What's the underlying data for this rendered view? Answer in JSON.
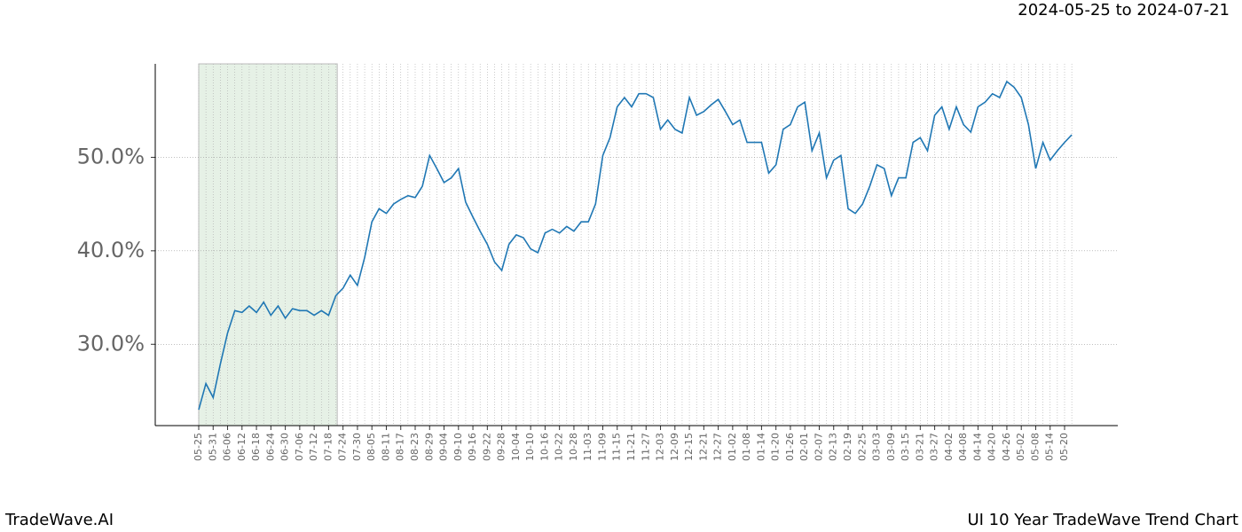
{
  "chart_data": {
    "type": "line",
    "title": "2024-05-25 to 2024-07-21",
    "footer_left": "TradeWave.AI",
    "footer_right": "UI 10 Year TradeWave Trend Chart",
    "categories": [
      "05-25",
      null,
      "05-31",
      null,
      "06-06",
      null,
      "06-12",
      null,
      "06-18",
      null,
      "06-24",
      null,
      "06-30",
      null,
      "07-06",
      null,
      "07-12",
      null,
      "07-18",
      null,
      "07-24",
      null,
      "07-30",
      null,
      "08-05",
      null,
      "08-11",
      null,
      "08-17",
      null,
      "08-23",
      null,
      "08-29",
      null,
      "09-04",
      null,
      "09-10",
      null,
      "09-16",
      null,
      "09-22",
      null,
      "09-28",
      null,
      "10-04",
      null,
      "10-10",
      null,
      "10-16",
      null,
      "10-22",
      null,
      "10-28",
      null,
      "11-03",
      null,
      "11-09",
      null,
      "11-15",
      null,
      "11-21",
      null,
      "11-27",
      null,
      "12-03",
      null,
      "12-09",
      null,
      "12-15",
      null,
      "12-21",
      null,
      "12-27",
      null,
      "01-02",
      null,
      "01-08",
      null,
      "01-14",
      null,
      "01-20",
      null,
      "01-26",
      null,
      "02-01",
      null,
      "02-07",
      null,
      "02-13",
      null,
      "02-19",
      null,
      "02-25",
      null,
      "03-03",
      null,
      "03-09",
      null,
      "03-15",
      null,
      "03-21",
      null,
      "03-27",
      null,
      "04-02",
      null,
      "04-08",
      null,
      "04-14",
      null,
      "04-20",
      null,
      "04-26",
      null,
      "05-02",
      null,
      "05-08",
      null,
      "05-14",
      null,
      "05-20",
      null
    ],
    "series": [
      {
        "color": "#1f77b4",
        "values": [
          23.0,
          25.8,
          24.3,
          27.9,
          31.2,
          33.6,
          33.4,
          34.1,
          33.4,
          34.5,
          33.1,
          34.1,
          32.8,
          33.8,
          33.6,
          33.6,
          33.1,
          33.6,
          33.1,
          35.2,
          36.0,
          37.4,
          36.3,
          39.3,
          43.1,
          44.5,
          44.0,
          45.0,
          45.5,
          45.9,
          45.7,
          46.9,
          50.2,
          48.8,
          47.3,
          47.8,
          48.8,
          45.2,
          43.6,
          42.1,
          40.7,
          38.8,
          37.9,
          40.7,
          41.7,
          41.4,
          40.2,
          39.8,
          41.9,
          42.3,
          41.9,
          42.6,
          42.1,
          43.1,
          43.1,
          45.0,
          50.2,
          52.1,
          55.4,
          56.4,
          55.4,
          56.8,
          56.8,
          56.4,
          53.0,
          54.0,
          53.0,
          52.6,
          56.4,
          54.5,
          54.9,
          55.6,
          56.2,
          54.9,
          53.5,
          54.0,
          51.6,
          51.6,
          51.6,
          48.3,
          49.2,
          53.0,
          53.5,
          55.4,
          55.9,
          50.7,
          52.6,
          47.8,
          49.7,
          50.2,
          44.5,
          44.0,
          45.0,
          46.9,
          49.2,
          48.8,
          45.9,
          47.8,
          47.8,
          51.6,
          52.1,
          50.7,
          54.5,
          55.4,
          53.0,
          55.4,
          53.5,
          52.7,
          55.4,
          55.9,
          56.8,
          56.4,
          58.1,
          57.5,
          56.4,
          53.5,
          48.8,
          51.6,
          49.7,
          50.7,
          51.6,
          52.4
        ]
      }
    ],
    "ylim": [
      21.3,
      60
    ],
    "yticks": [
      {
        "value": 30,
        "label": "30.0%"
      },
      {
        "value": 40,
        "label": "40.0%"
      },
      {
        "value": 50,
        "label": "50.0%"
      }
    ],
    "shade_x": [
      0,
      19.2
    ],
    "shade_color": "#e6f1e6",
    "grid": true
  }
}
